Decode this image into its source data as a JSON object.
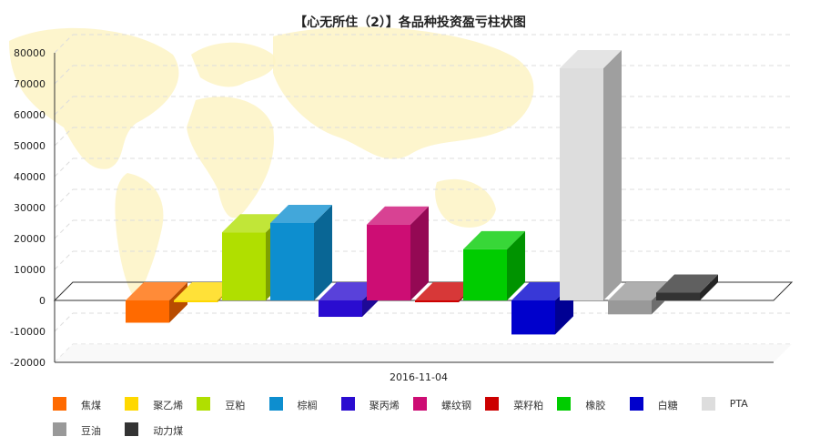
{
  "chart_data": {
    "type": "bar",
    "title": "【心无所住（2）】各品种投资盈亏柱状图",
    "categories": [
      "2016-11-04"
    ],
    "ylim": [
      -20000,
      80000
    ],
    "yticks": [
      "80000",
      "70000",
      "60000",
      "50000",
      "40000",
      "30000",
      "20000",
      "10000",
      "0",
      "-10000",
      "-20000"
    ],
    "grid": true,
    "legend_position": "bottom",
    "series": [
      {
        "name": "焦煤",
        "value": -7200,
        "color": "#ff6a00"
      },
      {
        "name": "聚乙烯",
        "value": 0,
        "color": "#ffd800"
      },
      {
        "name": "豆粕",
        "value": 22000,
        "color": "#b0df00"
      },
      {
        "name": "棕榈",
        "value": 25000,
        "color": "#0d8ecf"
      },
      {
        "name": "聚丙烯",
        "value": -5300,
        "color": "#2a0cd0"
      },
      {
        "name": "螺纹钢",
        "value": 24500,
        "color": "#cd0d74"
      },
      {
        "name": "菜籽粕",
        "value": 0,
        "color": "#cc0000"
      },
      {
        "name": "橡胶",
        "value": 16500,
        "color": "#00cc00"
      },
      {
        "name": "白糖",
        "value": -11000,
        "color": "#0000cc"
      },
      {
        "name": "PTA",
        "value": 75000,
        "color": "#dddddd"
      },
      {
        "name": "豆油",
        "value": -4500,
        "color": "#999999"
      },
      {
        "name": "动力煤",
        "value": 2500,
        "color": "#333333"
      }
    ]
  }
}
